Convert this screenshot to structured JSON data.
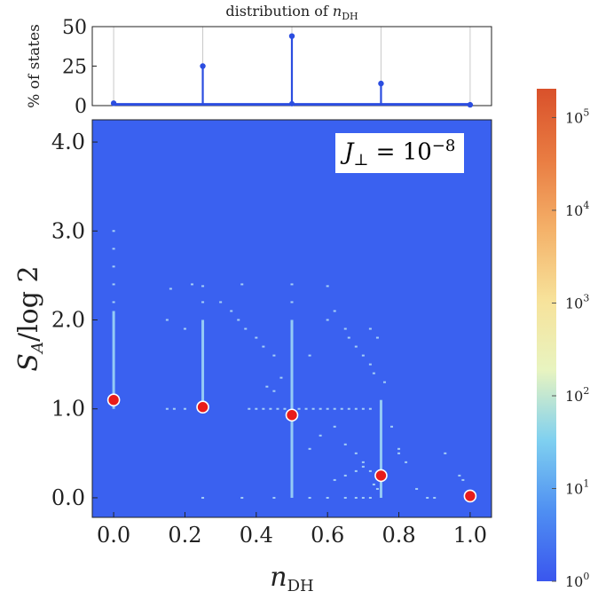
{
  "chart_data": [
    {
      "type": "bar",
      "title": "distribution of n_DH",
      "title_parts": {
        "prefix": "distribution of ",
        "var": "n",
        "sub": "DH"
      },
      "ylabel": "% of states",
      "xlabel": "",
      "ylim": [
        0,
        50
      ],
      "y_ticks": [
        "0",
        "25",
        "50"
      ],
      "categories": [
        0.0,
        0.25,
        0.5,
        0.75,
        1.0
      ],
      "values": [
        1.5,
        25,
        44,
        14,
        0.5
      ],
      "extra_points": [
        {
          "x": 0.5,
          "y": 1.2
        }
      ],
      "marker_color": "#2b4de0",
      "grid": "vertical"
    },
    {
      "type": "heatmap",
      "xlabel": "n_DH",
      "xlabel_parts": {
        "var": "n",
        "sub": "DH"
      },
      "ylabel": "S_A/log 2",
      "ylabel_parts": {
        "var": "S",
        "sub": "A",
        "rest": "/log 2"
      },
      "xlim": [
        -0.06,
        1.06
      ],
      "ylim": [
        -0.22,
        4.25
      ],
      "x_ticks": [
        "0.0",
        "0.2",
        "0.4",
        "0.6",
        "0.8",
        "1.0"
      ],
      "y_ticks": [
        "0.0",
        "1.0",
        "2.0",
        "3.0",
        "4.0"
      ],
      "background_color": "#3a61f0",
      "legend": {
        "lhs": "J",
        "lhs_sub": "⊥",
        "rhs": "= 10",
        "rhs_sup": "−8",
        "position": "top-right"
      },
      "mean_points": [
        {
          "x": 0.0,
          "y": 1.1
        },
        {
          "x": 0.25,
          "y": 1.02
        },
        {
          "x": 0.5,
          "y": 0.93
        },
        {
          "x": 0.75,
          "y": 0.25
        },
        {
          "x": 1.0,
          "y": 0.02
        }
      ],
      "mean_point_color": "#e81b1b",
      "vertical_streaks": [
        {
          "x": 0.0,
          "y_from": 1.0,
          "y_to": 2.1
        },
        {
          "x": 0.25,
          "y_from": 1.0,
          "y_to": 2.0
        },
        {
          "x": 0.5,
          "y_from": 0.0,
          "y_to": 2.0
        },
        {
          "x": 0.75,
          "y_from": 0.0,
          "y_to": 1.1
        }
      ],
      "scatter_points": [
        [
          0.0,
          2.2
        ],
        [
          0.0,
          2.4
        ],
        [
          0.0,
          2.6
        ],
        [
          0.0,
          2.8
        ],
        [
          0.0,
          3.0
        ],
        [
          0.15,
          2.0
        ],
        [
          0.15,
          1.0
        ],
        [
          0.17,
          1.0
        ],
        [
          0.2,
          1.9
        ],
        [
          0.2,
          1.0
        ],
        [
          0.22,
          2.4
        ],
        [
          0.16,
          2.35
        ],
        [
          0.25,
          2.2
        ],
        [
          0.25,
          2.38
        ],
        [
          0.25,
          0.0
        ],
        [
          0.3,
          2.2
        ],
        [
          0.33,
          2.1
        ],
        [
          0.35,
          2.0
        ],
        [
          0.37,
          1.9
        ],
        [
          0.36,
          2.4
        ],
        [
          0.4,
          1.8
        ],
        [
          0.42,
          1.7
        ],
        [
          0.45,
          1.6
        ],
        [
          0.36,
          0.0
        ],
        [
          0.38,
          1.0
        ],
        [
          0.4,
          1.0
        ],
        [
          0.42,
          1.0
        ],
        [
          0.44,
          1.0
        ],
        [
          0.46,
          1.0
        ],
        [
          0.48,
          1.0
        ],
        [
          0.52,
          1.0
        ],
        [
          0.54,
          1.0
        ],
        [
          0.56,
          1.0
        ],
        [
          0.58,
          1.0
        ],
        [
          0.6,
          1.0
        ],
        [
          0.62,
          1.0
        ],
        [
          0.64,
          1.0
        ],
        [
          0.66,
          1.0
        ],
        [
          0.68,
          1.0
        ],
        [
          0.7,
          1.0
        ],
        [
          0.72,
          1.0
        ],
        [
          0.45,
          0.0
        ],
        [
          0.55,
          0.0
        ],
        [
          0.6,
          0.0
        ],
        [
          0.65,
          0.0
        ],
        [
          0.68,
          0.0
        ],
        [
          0.7,
          0.0
        ],
        [
          0.72,
          0.0
        ],
        [
          0.5,
          2.4
        ],
        [
          0.6,
          2.38
        ],
        [
          0.6,
          2.0
        ],
        [
          0.62,
          2.1
        ],
        [
          0.65,
          1.9
        ],
        [
          0.66,
          1.8
        ],
        [
          0.68,
          1.7
        ],
        [
          0.7,
          1.6
        ],
        [
          0.72,
          1.5
        ],
        [
          0.73,
          1.4
        ],
        [
          0.45,
          1.2
        ],
        [
          0.47,
          1.35
        ],
        [
          0.43,
          1.25
        ],
        [
          0.55,
          0.55
        ],
        [
          0.58,
          0.7
        ],
        [
          0.62,
          0.8
        ],
        [
          0.65,
          0.6
        ],
        [
          0.68,
          0.5
        ],
        [
          0.7,
          0.4
        ],
        [
          0.62,
          0.2
        ],
        [
          0.65,
          0.25
        ],
        [
          0.68,
          0.3
        ],
        [
          0.7,
          0.35
        ],
        [
          0.72,
          0.3
        ],
        [
          0.73,
          0.15
        ],
        [
          0.74,
          0.1
        ],
        [
          0.8,
          0.5
        ],
        [
          0.82,
          0.4
        ],
        [
          0.85,
          0.1
        ],
        [
          0.78,
          0.8
        ],
        [
          0.8,
          0.55
        ],
        [
          0.88,
          0.0
        ],
        [
          0.9,
          0.0
        ],
        [
          0.93,
          0.5
        ],
        [
          0.97,
          0.25
        ],
        [
          0.98,
          0.2
        ],
        [
          0.72,
          1.9
        ],
        [
          0.74,
          1.8
        ],
        [
          0.76,
          1.3
        ],
        [
          0.55,
          1.6
        ],
        [
          0.5,
          2.2
        ]
      ]
    }
  ],
  "colorbar": {
    "ticks": [
      {
        "base": "10",
        "exp": "0",
        "frac": 0.0
      },
      {
        "base": "10",
        "exp": "1",
        "frac": 0.1883
      },
      {
        "base": "10",
        "exp": "2",
        "frac": 0.3766
      },
      {
        "base": "10",
        "exp": "3",
        "frac": 0.5649
      },
      {
        "base": "10",
        "exp": "4",
        "frac": 0.7532
      },
      {
        "base": "10",
        "exp": "5",
        "frac": 0.9415
      }
    ],
    "colors": [
      "#3a56ee",
      "#4f8ff2",
      "#7fd0f0",
      "#e8f4c0",
      "#f7e29a",
      "#f4b169",
      "#e97c42",
      "#d9512b"
    ]
  }
}
